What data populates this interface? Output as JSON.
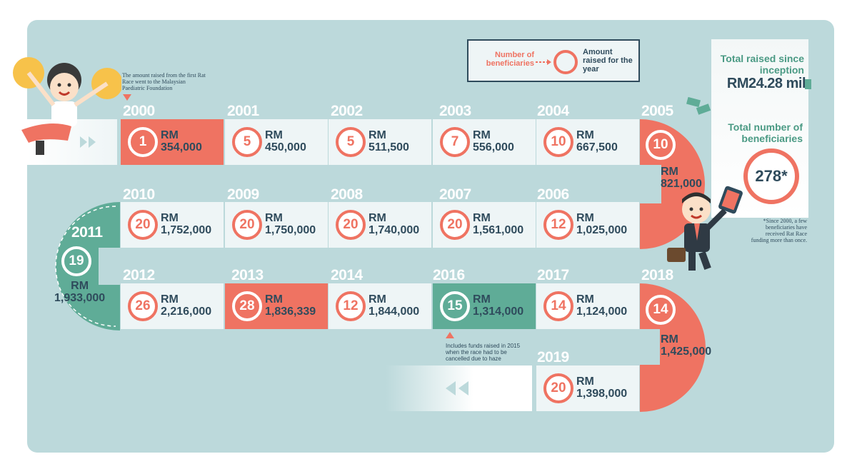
{
  "legend": {
    "beneficiaries_label": "Number of beneficiaries",
    "amount_label": "Amount raised for the year"
  },
  "first_note": "The amount raised from the first Rat Race went to the Malaysian Paediatric Foundation",
  "totals": {
    "raised_label": "Total raised since inception",
    "raised_value": "RM24.28 mil",
    "beneficiaries_label": "Total number of beneficiaries",
    "beneficiaries_value": "278*",
    "footnote": "*Since 2000, a few beneficiaries have received Rat Race funding more than once."
  },
  "haze_note": "Includes funds raised in 2015 when the race had to be cancelled due to haze",
  "years": [
    {
      "year": "2000",
      "count": "1",
      "rm": "RM",
      "amount": "354,000"
    },
    {
      "year": "2001",
      "count": "5",
      "rm": "RM",
      "amount": "450,000"
    },
    {
      "year": "2002",
      "count": "5",
      "rm": "RM",
      "amount": "511,500"
    },
    {
      "year": "2003",
      "count": "7",
      "rm": "RM",
      "amount": "556,000"
    },
    {
      "year": "2004",
      "count": "10",
      "rm": "RM",
      "amount": "667,500"
    },
    {
      "year": "2005",
      "count": "10",
      "rm": "RM",
      "amount": "821,000"
    },
    {
      "year": "2006",
      "count": "12",
      "rm": "RM",
      "amount": "1,025,000"
    },
    {
      "year": "2007",
      "count": "20",
      "rm": "RM",
      "amount": "1,561,000"
    },
    {
      "year": "2008",
      "count": "20",
      "rm": "RM",
      "amount": "1,740,000"
    },
    {
      "year": "2009",
      "count": "20",
      "rm": "RM",
      "amount": "1,750,000"
    },
    {
      "year": "2010",
      "count": "20",
      "rm": "RM",
      "amount": "1,752,000"
    },
    {
      "year": "2011",
      "count": "19",
      "rm": "RM",
      "amount": "1,933,000"
    },
    {
      "year": "2012",
      "count": "26",
      "rm": "RM",
      "amount": "2,216,000"
    },
    {
      "year": "2013",
      "count": "28",
      "rm": "RM",
      "amount": "1,836,339"
    },
    {
      "year": "2014",
      "count": "12",
      "rm": "RM",
      "amount": "1,844,000"
    },
    {
      "year": "2016",
      "count": "15",
      "rm": "RM",
      "amount": "1,314,000"
    },
    {
      "year": "2017",
      "count": "14",
      "rm": "RM",
      "amount": "1,124,000"
    },
    {
      "year": "2018",
      "count": "14",
      "rm": "RM",
      "amount": "1,425,000"
    },
    {
      "year": "2019",
      "count": "20",
      "rm": "RM",
      "amount": "1,398,000"
    }
  ]
}
